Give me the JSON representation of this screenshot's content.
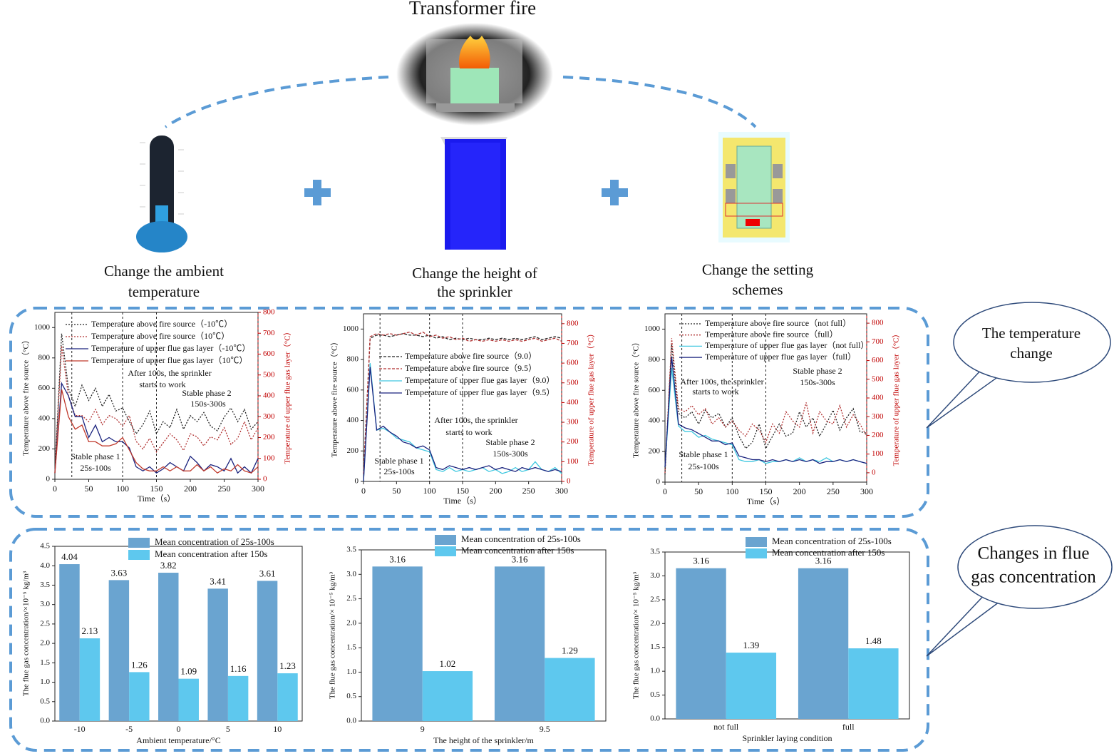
{
  "title": "Transformer fire",
  "panels": [
    [
      "Change the ambient",
      "temperature"
    ],
    [
      "Change the height of",
      "the sprinkler"
    ],
    [
      "Change the setting",
      "schemes"
    ]
  ],
  "callouts": [
    [
      "The temperature",
      "change"
    ],
    [
      "Changes in flue",
      "gas concentration"
    ]
  ],
  "chart_data": [
    {
      "type": "line",
      "xlabel": "Time（s）",
      "ylabel": "Temperature above fire source（°C）",
      "y2label": "Temperature of upper flue gas layer（°C）",
      "y2color": "#c00000",
      "x": [
        0,
        10,
        20,
        30,
        40,
        50,
        60,
        70,
        80,
        90,
        100,
        110,
        120,
        130,
        140,
        150,
        160,
        170,
        180,
        190,
        200,
        210,
        220,
        230,
        240,
        250,
        260,
        270,
        280,
        290,
        300
      ],
      "xlim": [
        0,
        300
      ],
      "xticks": [
        0,
        50,
        100,
        150,
        200,
        250,
        300
      ],
      "ylim": [
        0,
        1100
      ],
      "yticks": [
        0,
        200,
        400,
        600,
        800,
        1000
      ],
      "y2lim": [
        0,
        800
      ],
      "y2ticks": [
        0,
        100,
        200,
        300,
        400,
        500,
        600,
        700,
        800
      ],
      "phase_lines": [
        25,
        100,
        150,
        300
      ],
      "annotations": [
        "After 100s, the sprinkler",
        "starts to work",
        "Stable phase 2",
        "150s-300s",
        "Stable phase 1",
        "25s-100s"
      ],
      "series": [
        {
          "name": "Temperature above fire source（-10℃）",
          "color": "#222222",
          "dash": "2 2",
          "values": [
            50,
            960,
            600,
            480,
            620,
            520,
            600,
            480,
            560,
            450,
            470,
            380,
            300,
            360,
            450,
            300,
            380,
            340,
            460,
            330,
            420,
            380,
            440,
            350,
            320,
            410,
            470,
            380,
            460,
            330,
            380
          ]
        },
        {
          "name": "Temperature above fire source（10℃）",
          "color": "#b03030",
          "dash": "2 2",
          "values": [
            40,
            880,
            550,
            420,
            420,
            380,
            460,
            360,
            420,
            400,
            350,
            420,
            250,
            200,
            270,
            180,
            240,
            300,
            260,
            190,
            300,
            280,
            220,
            280,
            260,
            340,
            230,
            270,
            380,
            260,
            340
          ]
        },
        {
          "name": "Temperature of upper flue gas layer（-10℃）",
          "color": "#1a237e",
          "axis": "y2",
          "values": [
            30,
            460,
            400,
            300,
            300,
            200,
            260,
            180,
            200,
            180,
            180,
            150,
            60,
            40,
            60,
            30,
            50,
            80,
            60,
            40,
            110,
            80,
            40,
            70,
            60,
            40,
            100,
            30,
            60,
            30,
            100
          ]
        },
        {
          "name": "Temperature of upper flue gas layer（10℃）",
          "color": "#c0392b",
          "axis": "y2",
          "values": [
            30,
            430,
            300,
            240,
            260,
            180,
            180,
            160,
            160,
            170,
            200,
            140,
            80,
            50,
            40,
            40,
            60,
            40,
            60,
            40,
            40,
            70,
            40,
            60,
            30,
            50,
            40,
            70,
            40,
            30,
            60
          ]
        }
      ]
    },
    {
      "type": "line",
      "xlabel": "Time（s）",
      "ylabel": "Temperature above fire source（°C）",
      "y2label": "Temperature of upper flue gas layer（°C）",
      "y2color": "#c00000",
      "x": [
        0,
        10,
        20,
        30,
        40,
        50,
        60,
        70,
        80,
        90,
        100,
        110,
        120,
        130,
        140,
        150,
        160,
        170,
        180,
        190,
        200,
        210,
        220,
        230,
        240,
        250,
        260,
        270,
        280,
        290,
        300
      ],
      "xlim": [
        0,
        300
      ],
      "xticks": [
        0,
        50,
        100,
        150,
        200,
        250,
        300
      ],
      "ylim": [
        0,
        1100
      ],
      "yticks": [
        0,
        200,
        400,
        600,
        800,
        1000
      ],
      "y2lim": [
        0,
        850
      ],
      "y2ticks": [
        0,
        100,
        200,
        300,
        400,
        500,
        600,
        700,
        800
      ],
      "phase_lines": [
        25,
        100,
        150,
        300
      ],
      "annotations": [
        "After 100s, the sprinkler",
        "starts to work",
        "Stable phase 2",
        "150s-300s",
        "Stable phase 1",
        "25s-100s"
      ],
      "series": [
        {
          "name": "Temperature above fire source（9.0）",
          "color": "#222222",
          "dash": "4 2",
          "values": [
            50,
            940,
            960,
            960,
            950,
            960,
            970,
            960,
            960,
            950,
            960,
            940,
            950,
            930,
            940,
            930,
            940,
            930,
            930,
            940,
            930,
            940,
            930,
            940,
            930,
            940,
            950,
            930,
            940,
            950,
            940
          ]
        },
        {
          "name": "Temperature above fire source（9.5）",
          "color": "#b03030",
          "dash": "4 2",
          "values": [
            50,
            950,
            970,
            960,
            970,
            960,
            970,
            980,
            960,
            980,
            950,
            960,
            940,
            950,
            930,
            940,
            920,
            930,
            920,
            930,
            920,
            930,
            920,
            930,
            920,
            930,
            940,
            920,
            930,
            940,
            920
          ]
        },
        {
          "name": "Temperature of upper flue gas layer（9.0）",
          "color": "#40c8e0",
          "axis": "y2",
          "values": [
            0,
            600,
            260,
            270,
            250,
            220,
            210,
            200,
            170,
            160,
            150,
            60,
            50,
            70,
            50,
            60,
            50,
            60,
            70,
            50,
            60,
            40,
            50,
            70,
            50,
            60,
            100,
            60,
            50,
            70,
            40
          ]
        },
        {
          "name": "Temperature of upper flue gas layer（9.5）",
          "color": "#1a237e",
          "axis": "y2",
          "values": [
            0,
            580,
            260,
            280,
            250,
            230,
            200,
            190,
            170,
            180,
            160,
            70,
            60,
            80,
            70,
            60,
            70,
            60,
            70,
            80,
            60,
            70,
            60,
            50,
            70,
            60,
            70,
            60,
            50,
            60,
            50
          ]
        }
      ]
    },
    {
      "type": "line",
      "xlabel": "Time（s）",
      "ylabel": "Temperature above fire source（°C）",
      "y2label": "Temperature of upper flue gas layer（°C）",
      "y2color": "#c00000",
      "x": [
        0,
        10,
        20,
        30,
        40,
        50,
        60,
        70,
        80,
        90,
        100,
        110,
        120,
        130,
        140,
        150,
        160,
        170,
        180,
        190,
        200,
        210,
        220,
        230,
        240,
        250,
        260,
        270,
        280,
        290,
        300
      ],
      "xlim": [
        0,
        300
      ],
      "xticks": [
        0,
        50,
        100,
        150,
        200,
        250,
        300
      ],
      "ylim": [
        0,
        1100
      ],
      "yticks": [
        0,
        200,
        400,
        600,
        800,
        1000
      ],
      "y2lim": [
        -50,
        850
      ],
      "y2ticks": [
        0,
        100,
        200,
        300,
        400,
        500,
        600,
        700,
        800
      ],
      "phase_lines": [
        25,
        100,
        150,
        300
      ],
      "annotations": [
        "After 100s, the sprinkler",
        "starts to work",
        "Stable phase 2",
        "150s-300s",
        "Stable phase 1",
        "25s-100s"
      ],
      "series": [
        {
          "name": "Temperature above fire source（not full）",
          "color": "#222222",
          "dash": "2 2",
          "values": [
            50,
            900,
            450,
            420,
            460,
            380,
            470,
            420,
            450,
            360,
            420,
            300,
            220,
            260,
            380,
            220,
            300,
            380,
            300,
            320,
            460,
            360,
            420,
            300,
            380,
            470,
            340,
            420,
            480,
            330,
            320
          ]
        },
        {
          "name": "Temperature above fire source（full）",
          "color": "#b03030",
          "dash": "2 2",
          "values": [
            60,
            940,
            480,
            460,
            500,
            440,
            480,
            380,
            420,
            360,
            400,
            340,
            300,
            380,
            340,
            260,
            380,
            320,
            460,
            400,
            360,
            520,
            320,
            460,
            400,
            380,
            500,
            360,
            440,
            380,
            300
          ]
        },
        {
          "name": "Temperature of upper flue gas layer（not full）",
          "color": "#40c8e0",
          "axis": "y2",
          "values": [
            30,
            560,
            250,
            220,
            220,
            190,
            200,
            180,
            170,
            160,
            150,
            70,
            60,
            60,
            70,
            50,
            60,
            60,
            70,
            60,
            80,
            60,
            70,
            60,
            80,
            60,
            70,
            60,
            70,
            60,
            50
          ]
        },
        {
          "name": "Temperature of upper flue gas layer（full）",
          "color": "#1a237e",
          "axis": "y2",
          "values": [
            30,
            620,
            260,
            240,
            230,
            210,
            190,
            170,
            170,
            150,
            160,
            90,
            80,
            70,
            70,
            60,
            70,
            60,
            70,
            60,
            70,
            60,
            70,
            50,
            60,
            60,
            70,
            60,
            70,
            60,
            50
          ]
        }
      ]
    },
    {
      "type": "bar",
      "xlabel": "Ambient temperature/°C",
      "ylabel": "The flue gas concentration/×10⁻⁵ kg/m³",
      "categories": [
        "-10",
        "-5",
        "0",
        "5",
        "10"
      ],
      "ylim": [
        0,
        4.5
      ],
      "yticks": [
        {
          "value": 0,
          "label": "0.0"
        },
        0.5,
        {
          "value": 1,
          "label": "1.0"
        },
        1.5,
        {
          "value": 2,
          "label": "2.0"
        },
        2.5,
        {
          "value": 3,
          "label": "3.0"
        },
        3.5,
        {
          "value": 4,
          "label": "4.0"
        },
        4.5
      ],
      "series": [
        {
          "name": "Mean concentration of 25s-100s",
          "color": "#6aa4d0",
          "values": [
            4.04,
            3.63,
            3.82,
            3.41,
            3.61
          ]
        },
        {
          "name": "Mean concentration after 150s",
          "color": "#5ec8ee",
          "values": [
            2.13,
            1.26,
            1.09,
            1.16,
            1.23
          ]
        }
      ]
    },
    {
      "type": "bar",
      "xlabel": "The height of the sprinkler/m",
      "ylabel": "The flue gas concentration/× 10⁻⁵ kg/m³",
      "categories": [
        "9",
        "9.5"
      ],
      "ylim": [
        0,
        3.5
      ],
      "yticks": [
        {
          "value": 0,
          "label": "0.0"
        },
        0.5,
        {
          "value": 1,
          "label": "1.0"
        },
        1.5,
        {
          "value": 2,
          "label": "2.0"
        },
        2.5,
        {
          "value": 3,
          "label": "3.0"
        },
        3.5
      ],
      "series": [
        {
          "name": "Mean concentration of 25s-100s",
          "color": "#6aa4d0",
          "values": [
            3.16,
            3.16
          ]
        },
        {
          "name": "Mean concentration after 150s",
          "color": "#5ec8ee",
          "values": [
            1.02,
            1.29
          ]
        }
      ]
    },
    {
      "type": "bar",
      "xlabel": "Sprinkler laying condition",
      "ylabel": "The flue gas concentration/× 10⁻⁵ kg/m³",
      "categories": [
        "not full",
        "full"
      ],
      "ylim": [
        0,
        3.5
      ],
      "yticks": [
        {
          "value": 0,
          "label": "0.0"
        },
        0.5,
        {
          "value": 1,
          "label": "1.0"
        },
        1.5,
        {
          "value": 2,
          "label": "2.0"
        },
        2.5,
        {
          "value": 3,
          "label": "3.0"
        },
        3.5
      ],
      "series": [
        {
          "name": "Mean concentration of 25s-100s",
          "color": "#6aa4d0",
          "values": [
            3.16,
            3.16
          ]
        },
        {
          "name": "Mean concentration after 150s",
          "color": "#5ec8ee",
          "values": [
            1.39,
            1.48
          ]
        }
      ]
    }
  ]
}
